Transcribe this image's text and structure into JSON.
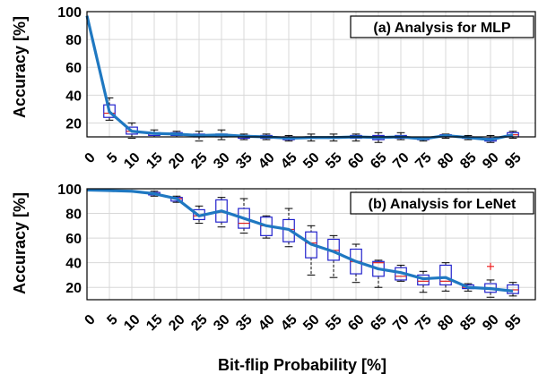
{
  "chart_data": [
    {
      "type": "box+line",
      "title": "(a) Analysis for MLP",
      "ylabel": "Accuracy [%]",
      "xlabel": "",
      "ylim": [
        10,
        100
      ],
      "yticks": [
        20,
        40,
        60,
        80,
        100
      ],
      "grid": true,
      "categories": [
        "0",
        "5",
        "10",
        "15",
        "20",
        "25",
        "30",
        "35",
        "40",
        "45",
        "50",
        "55",
        "60",
        "65",
        "70",
        "75",
        "80",
        "85",
        "90",
        "95"
      ],
      "line_values": [
        97,
        28,
        14,
        12.5,
        12,
        11,
        11.5,
        10.5,
        10,
        9,
        9.5,
        9.5,
        10,
        9.5,
        10,
        8.5,
        11,
        9.5,
        8,
        11.5
      ],
      "boxes": [
        {
          "x": "5",
          "q1": 24,
          "median": 27,
          "q3": 33,
          "lo": 22,
          "hi": 38
        },
        {
          "x": "10",
          "q1": 12,
          "median": 14,
          "q3": 17,
          "lo": 9,
          "hi": 20
        },
        {
          "x": "15",
          "q1": 11,
          "median": 12,
          "q3": 13,
          "lo": 10,
          "hi": 15
        },
        {
          "x": "20",
          "q1": 11,
          "median": 12,
          "q3": 13,
          "lo": 10,
          "hi": 14
        },
        {
          "x": "25",
          "q1": 10,
          "median": 10.5,
          "q3": 12,
          "lo": 7,
          "hi": 14
        },
        {
          "x": "30",
          "q1": 10,
          "median": 11,
          "q3": 12,
          "lo": 8,
          "hi": 15
        },
        {
          "x": "35",
          "q1": 9,
          "median": 10,
          "q3": 11,
          "lo": 8,
          "hi": 12
        },
        {
          "x": "40",
          "q1": 9,
          "median": 10,
          "q3": 11,
          "lo": 8,
          "hi": 12
        },
        {
          "x": "45",
          "q1": 8,
          "median": 9,
          "q3": 10,
          "lo": 7,
          "hi": 11
        },
        {
          "x": "50",
          "q1": 9,
          "median": 9.5,
          "q3": 10,
          "lo": 7,
          "hi": 12
        },
        {
          "x": "55",
          "q1": 9,
          "median": 9.5,
          "q3": 10,
          "lo": 7,
          "hi": 12
        },
        {
          "x": "60",
          "q1": 9,
          "median": 10,
          "q3": 11,
          "lo": 7,
          "hi": 12
        },
        {
          "x": "65",
          "q1": 8,
          "median": 9.5,
          "q3": 11,
          "lo": 6,
          "hi": 13
        },
        {
          "x": "70",
          "q1": 9,
          "median": 10,
          "q3": 11,
          "lo": 8,
          "hi": 13
        },
        {
          "x": "75",
          "q1": 8,
          "median": 8.5,
          "q3": 9,
          "lo": 7,
          "hi": 10
        },
        {
          "x": "80",
          "q1": 10,
          "median": 11,
          "q3": 11.5,
          "lo": 9,
          "hi": 12
        },
        {
          "x": "85",
          "q1": 9,
          "median": 9.5,
          "q3": 10,
          "lo": 8,
          "hi": 11
        },
        {
          "x": "90",
          "q1": 7,
          "median": 8,
          "q3": 9,
          "lo": 6,
          "hi": 11
        },
        {
          "x": "95",
          "q1": 10,
          "median": 11.5,
          "q3": 13,
          "lo": 9,
          "hi": 14
        }
      ],
      "outliers": []
    },
    {
      "type": "box+line",
      "title": "(b) Analysis for LeNet",
      "ylabel": "Accuracy [%]",
      "xlabel": "Bit-flip Probability [%]",
      "ylim": [
        10,
        100
      ],
      "yticks": [
        20,
        40,
        60,
        80,
        100
      ],
      "grid": true,
      "categories": [
        "0",
        "5",
        "10",
        "15",
        "20",
        "25",
        "30",
        "35",
        "40",
        "45",
        "50",
        "55",
        "60",
        "65",
        "70",
        "75",
        "80",
        "85",
        "90",
        "95"
      ],
      "line_values": [
        99,
        98.5,
        98,
        96,
        92,
        78,
        82,
        76,
        70,
        67,
        55,
        49,
        41,
        35,
        32,
        27,
        28,
        20,
        19,
        17
      ],
      "boxes": [
        {
          "x": "15",
          "q1": 95,
          "median": 96,
          "q3": 97,
          "lo": 94,
          "hi": 98
        },
        {
          "x": "20",
          "q1": 90,
          "median": 92,
          "q3": 93,
          "lo": 89,
          "hi": 94
        },
        {
          "x": "25",
          "q1": 75,
          "median": 78,
          "q3": 83,
          "lo": 72,
          "hi": 86
        },
        {
          "x": "30",
          "q1": 73,
          "median": 81,
          "q3": 91,
          "lo": 69,
          "hi": 93
        },
        {
          "x": "35",
          "q1": 68,
          "median": 72,
          "q3": 84,
          "lo": 64,
          "hi": 92
        },
        {
          "x": "40",
          "q1": 62,
          "median": 70,
          "q3": 77,
          "lo": 60,
          "hi": 78
        },
        {
          "x": "45",
          "q1": 57,
          "median": 67,
          "q3": 75,
          "lo": 53,
          "hi": 84
        },
        {
          "x": "50",
          "q1": 44,
          "median": 56,
          "q3": 65,
          "lo": 30,
          "hi": 70
        },
        {
          "x": "55",
          "q1": 42,
          "median": 50,
          "q3": 59,
          "lo": 28,
          "hi": 62
        },
        {
          "x": "60",
          "q1": 31,
          "median": 41,
          "q3": 51,
          "lo": 24,
          "hi": 55
        },
        {
          "x": "65",
          "q1": 29,
          "median": 40,
          "q3": 41,
          "lo": 20,
          "hi": 42
        },
        {
          "x": "70",
          "q1": 26,
          "median": 29,
          "q3": 36,
          "lo": 25,
          "hi": 38
        },
        {
          "x": "75",
          "q1": 22,
          "median": 25,
          "q3": 30,
          "lo": 16,
          "hi": 33
        },
        {
          "x": "80",
          "q1": 22,
          "median": 25,
          "q3": 38,
          "lo": 17,
          "hi": 40
        },
        {
          "x": "85",
          "q1": 19,
          "median": 20,
          "q3": 22,
          "lo": 17,
          "hi": 23
        },
        {
          "x": "90",
          "q1": 16,
          "median": 19,
          "q3": 23,
          "lo": 12,
          "hi": 26
        },
        {
          "x": "95",
          "q1": 15,
          "median": 18,
          "q3": 22,
          "lo": 13,
          "hi": 24
        }
      ],
      "outliers": [
        {
          "x": "90",
          "y": 37
        }
      ]
    }
  ],
  "colors": {
    "line": "#1f78c1",
    "box": "#2222cc",
    "median": "#dd2222",
    "outlier": "#ee2222",
    "grid": "#d8d8d8"
  }
}
